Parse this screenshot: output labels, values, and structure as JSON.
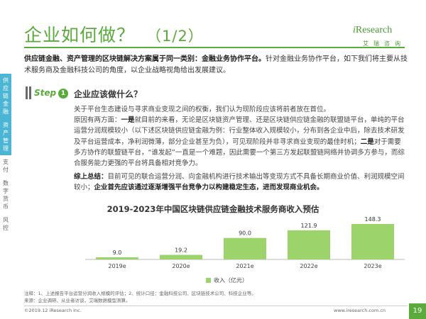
{
  "header": {
    "title": "企业如何做？",
    "title_num": "（1/2）",
    "logo_i": "i",
    "logo_rest": "Research",
    "logo_sub": "艾瑞咨询"
  },
  "lead": {
    "bold": "供应链金融、资产管理的区块链解决方案属于同一类别：金融业务协作平台。",
    "rest": "针对金融业务协作平台，如下我们将主要从技术服务商及金融科技公司的角度，以企业战略视角给出发展建议。"
  },
  "sidebar": {
    "tabs": [
      {
        "label": "供应链金融",
        "active": true
      },
      {
        "label": "资产管理",
        "active": true
      },
      {
        "label": "支付",
        "active": false
      },
      {
        "label": "数字货币",
        "active": false
      },
      {
        "label": "风控",
        "active": false
      }
    ]
  },
  "step": {
    "label": "Step",
    "number": "1",
    "heading": "企业应该做什么？"
  },
  "body": {
    "p1": "关于平台生态建设与寻求商业变现之间的权衡，我们认为现阶段应该将前者放在首位。",
    "p2_a": "原因有两方面：",
    "p2_b": "一是",
    "p2_c": "就目前的来看，无论是区块链资产管理、还是区块链供应链金融的联盟链平台，单纯的平台运营分润规模较小（以下述区块链供应链金融为例：行业整体收入规模较小，分布到各企业中后，除去技术研发及平台运营成本，净利润微薄，部分企业甚至为负），可见现阶段并非寻求商业变现的最佳时机；",
    "p2_d": "二是",
    "p2_e": "对于需要多方协作的联盟链平台，“谁发起”一直是一个难题，因此需要一个第三方发起联盟链网络并协调多方参与，而综合服务能力更强的平台将具备相对竞争力。",
    "summary_a": "综上总结：",
    "summary_b": "目前可见的联合运营分润、向金融机构进行技术输出等变现方式不具备长期商业价值、利润规模空间较小；",
    "summary_c": "企业首先应该通过逐渐增强平台竞争力以构建稳定生态，进而发现商业机会。"
  },
  "chart_data": {
    "type": "bar",
    "title": "2019-2023年中国区块链供应链金融技术服务商收入预估",
    "categories": [
      "2019e",
      "2020e",
      "2021e",
      "2022e",
      "2023e"
    ],
    "series": [
      {
        "name": "收入（亿元）",
        "values": [
          9.0,
          19.2,
          90.0,
          121.9,
          148.3
        ]
      }
    ],
    "value_labels": [
      "9.0",
      "19.2",
      "90.0",
      "121.9",
      "148.3"
    ],
    "legend": "bottom",
    "color": "#9dd36b",
    "ylim": [
      0,
      148.3
    ]
  },
  "footer": {
    "note1": "注释：1、上述报告平台运营分润收入规模的评估；2、统计口径：金融科技公司、区块链技术公司、科技企业等。",
    "note2": "来源：企业调研、从业者访谈，艾瑞数据模型测算。",
    "copyright": "©2019.12 iResearch Inc.",
    "site": "www.iresearch.com.cn",
    "page": "19"
  }
}
